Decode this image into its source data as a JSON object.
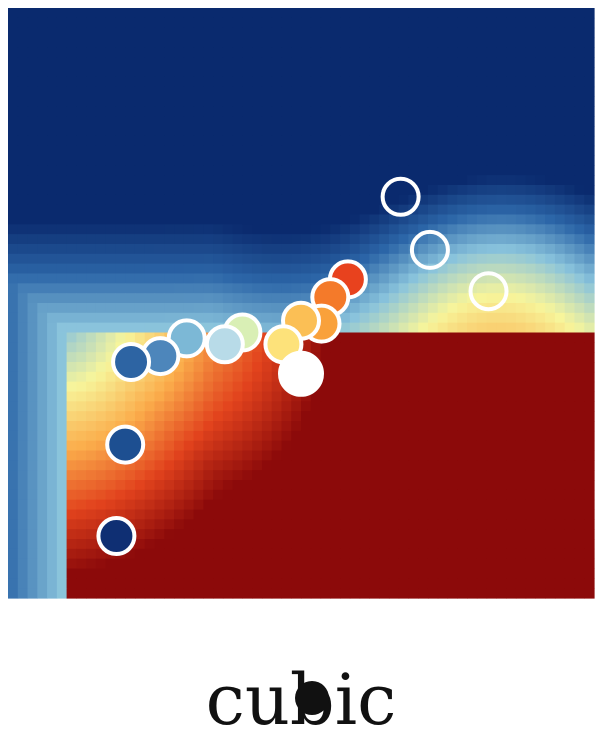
{
  "chart_data": {
    "type": "heatmap",
    "title": "cubic",
    "xlabel": "",
    "ylabel": "",
    "xlim": [
      0,
      10
    ],
    "ylim": [
      0,
      10
    ],
    "colormap": [
      "#0a2a6e",
      "#2c66a8",
      "#89c3dc",
      "#f7f59b",
      "#fbad4b",
      "#e2431d",
      "#8c0a0a"
    ],
    "points": [
      {
        "x": 6.7,
        "y": 6.8,
        "fill": null
      },
      {
        "x": 7.2,
        "y": 5.9,
        "fill": null
      },
      {
        "x": 8.2,
        "y": 5.2,
        "fill": null
      },
      {
        "x": 5.8,
        "y": 5.4,
        "fill": "#e8421e"
      },
      {
        "x": 5.5,
        "y": 5.1,
        "fill": "#f47a2a"
      },
      {
        "x": 5.35,
        "y": 4.65,
        "fill": "#f9a13b"
      },
      {
        "x": 5.0,
        "y": 4.7,
        "fill": "#fbbf55"
      },
      {
        "x": 4.7,
        "y": 4.3,
        "fill": "#fde27a"
      },
      {
        "x": 4.0,
        "y": 4.5,
        "fill": "#d9efb5"
      },
      {
        "x": 3.7,
        "y": 4.3,
        "fill": "#b8dbe8"
      },
      {
        "x": 3.05,
        "y": 4.4,
        "fill": "#7cb8d6"
      },
      {
        "x": 2.6,
        "y": 4.1,
        "fill": "#4d86bb"
      },
      {
        "x": 2.1,
        "y": 4.0,
        "fill": "#2d64a3"
      },
      {
        "x": 2.0,
        "y": 2.6,
        "fill": "#1d4f91"
      },
      {
        "x": 1.85,
        "y": 1.05,
        "fill": "#0f2f73"
      }
    ],
    "query_point": {
      "x": 5.0,
      "y": 3.8,
      "fill": "#ffffff"
    }
  }
}
